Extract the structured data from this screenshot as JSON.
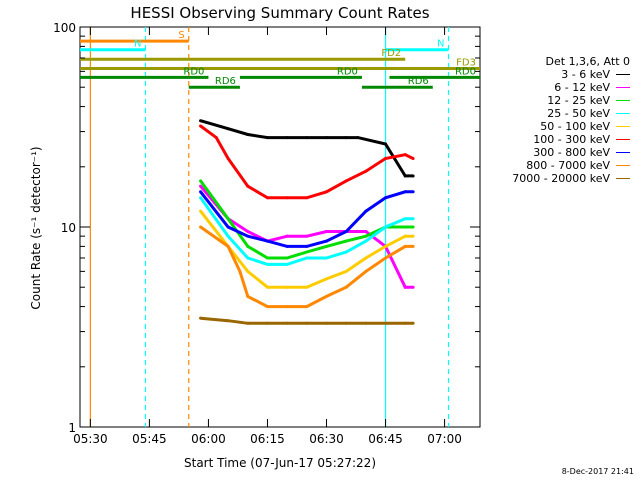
{
  "chart_data": {
    "type": "line",
    "title": "HESSI Observing Summary Count Rates",
    "xlabel": "Start Time (07-Jun-17 05:27:22)",
    "ylabel": "Count Rate (s⁻¹ detector⁻¹)",
    "y_scale": "log",
    "ylim": [
      1,
      100
    ],
    "x_range": [
      "05:27:22",
      "07:09:00"
    ],
    "x_ticks": [
      "05:30",
      "05:45",
      "06:00",
      "06:15",
      "06:30",
      "06:45",
      "07:00"
    ],
    "y_ticks": [
      "1",
      "10",
      "100"
    ],
    "grid": false,
    "legend_title": "Det 1,3,6, Att 0",
    "series": [
      {
        "name": "3 - 6 keV",
        "color": "#000000",
        "x": [
          "05:58",
          "06:05",
          "06:10",
          "06:15",
          "06:20",
          "06:25",
          "06:30",
          "06:35",
          "06:38",
          "06:45",
          "06:50",
          "06:52"
        ],
        "y": [
          34,
          31,
          29,
          28,
          28,
          28,
          28,
          28,
          28,
          26,
          18,
          18
        ]
      },
      {
        "name": "6 - 12 keV",
        "color": "#ff00ff",
        "x": [
          "05:58",
          "06:05",
          "06:10",
          "06:15",
          "06:20",
          "06:25",
          "06:30",
          "06:35",
          "06:40",
          "06:45",
          "06:50",
          "06:52"
        ],
        "y": [
          16,
          11,
          9.5,
          8.5,
          9,
          9,
          9.5,
          9.5,
          9.5,
          8,
          5,
          5
        ]
      },
      {
        "name": "12 - 25 keV",
        "color": "#00dd00",
        "x": [
          "05:58",
          "06:05",
          "06:10",
          "06:15",
          "06:20",
          "06:25",
          "06:30",
          "06:35",
          "06:40",
          "06:45",
          "06:50",
          "06:52"
        ],
        "y": [
          17,
          11,
          8,
          7,
          7,
          7.5,
          8,
          8.5,
          9,
          10,
          10,
          10
        ]
      },
      {
        "name": "25 - 50 keV",
        "color": "#00ffff",
        "x": [
          "05:58",
          "06:05",
          "06:10",
          "06:15",
          "06:20",
          "06:25",
          "06:30",
          "06:35",
          "06:40",
          "06:45",
          "06:50",
          "06:52"
        ],
        "y": [
          14,
          9,
          7,
          6.5,
          6.5,
          7,
          7,
          7.5,
          8.5,
          10,
          11,
          11
        ]
      },
      {
        "name": "50 - 100 keV",
        "color": "#ffcc00",
        "x": [
          "05:58",
          "06:05",
          "06:10",
          "06:15",
          "06:20",
          "06:25",
          "06:30",
          "06:35",
          "06:40",
          "06:45",
          "06:50",
          "06:52"
        ],
        "y": [
          12,
          8,
          6,
          5,
          5,
          5,
          5.5,
          6,
          7,
          8,
          9,
          9
        ]
      },
      {
        "name": "100 - 300 keV",
        "color": "#ff0000",
        "x": [
          "05:58",
          "06:02",
          "06:05",
          "06:10",
          "06:15",
          "06:20",
          "06:25",
          "06:30",
          "06:35",
          "06:40",
          "06:45",
          "06:50",
          "06:52"
        ],
        "y": [
          32,
          28,
          22,
          16,
          14,
          14,
          14,
          15,
          17,
          19,
          22,
          23,
          22
        ]
      },
      {
        "name": "300 - 800 keV",
        "color": "#0000ff",
        "x": [
          "05:58",
          "06:05",
          "06:10",
          "06:15",
          "06:20",
          "06:25",
          "06:30",
          "06:35",
          "06:40",
          "06:45",
          "06:50",
          "06:52"
        ],
        "y": [
          15,
          10,
          9,
          8.5,
          8,
          8,
          8.5,
          9.5,
          12,
          14,
          15,
          15
        ]
      },
      {
        "name": "800 - 7000 keV",
        "color": "#ff8800",
        "x": [
          "05:58",
          "06:05",
          "06:08",
          "06:10",
          "06:15",
          "06:20",
          "06:25",
          "06:30",
          "06:35",
          "06:40",
          "06:45",
          "06:50",
          "06:52"
        ],
        "y": [
          10,
          8,
          6,
          4.5,
          4,
          4,
          4,
          4.5,
          5,
          6,
          7,
          8,
          8
        ]
      },
      {
        "name": "7000 - 20000 keV",
        "color": "#996600",
        "x": [
          "05:58",
          "06:05",
          "06:10",
          "06:15",
          "06:20",
          "06:25",
          "06:30",
          "06:35",
          "06:40",
          "06:45",
          "06:50",
          "06:52"
        ],
        "y": [
          3.5,
          3.4,
          3.3,
          3.3,
          3.3,
          3.3,
          3.3,
          3.3,
          3.3,
          3.3,
          3.3,
          3.3
        ]
      }
    ],
    "flags": [
      {
        "label": "S",
        "color": "#ff8800",
        "from": "05:27:22",
        "to": "05:55",
        "y": 85
      },
      {
        "label": "N",
        "color": "#00ffff",
        "from": "05:27:22",
        "to": "05:44",
        "y": 77
      },
      {
        "label": "N",
        "color": "#00ffff",
        "from": "06:45",
        "to": "07:01",
        "y": 77
      },
      {
        "label": "FD2",
        "color": "#999900",
        "from": "05:27:22",
        "to": "06:50",
        "y": 69
      },
      {
        "label": "FD3",
        "color": "#999900",
        "from": "05:27:22",
        "to": "07:09",
        "y": 62
      },
      {
        "label": "RD0",
        "color": "#008800",
        "from": "05:27:22",
        "to": "06:00",
        "y": 56
      },
      {
        "label": "RD0",
        "color": "#008800",
        "from": "06:08",
        "to": "06:39",
        "y": 56
      },
      {
        "label": "RD0",
        "color": "#008800",
        "from": "06:46",
        "to": "07:09",
        "y": 56
      },
      {
        "label": "RD6",
        "color": "#008800",
        "from": "05:55",
        "to": "06:08",
        "y": 50
      },
      {
        "label": "RD6",
        "color": "#008800",
        "from": "06:39",
        "to": "06:57",
        "y": 50
      }
    ],
    "vlines": [
      {
        "at": "05:30",
        "color": "#ff8800",
        "style": "solid"
      },
      {
        "at": "05:44",
        "color": "#00ffff",
        "style": "dashed"
      },
      {
        "at": "05:55",
        "color": "#ff8800",
        "style": "dashed"
      },
      {
        "at": "06:45",
        "color": "#00ffff",
        "style": "solid"
      },
      {
        "at": "07:01",
        "color": "#00ffff",
        "style": "dashed"
      }
    ]
  },
  "footer": {
    "date": "8-Dec-2017 21:41"
  }
}
